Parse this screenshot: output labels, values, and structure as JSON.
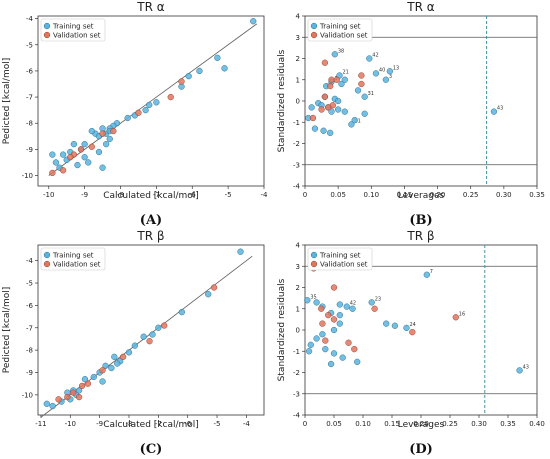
{
  "colors": {
    "training": "#5bb4de",
    "validation": "#e0765e",
    "training_edge": "#2a6f93",
    "validation_edge": "#9a3f2b",
    "line": "#666666",
    "leverage_line": "#2f8a94"
  },
  "chart_data": [
    {
      "id": "A",
      "type": "scatter",
      "panel_label": "(A)",
      "title": "TR α",
      "xlabel": "Calculated [kcal/mol]",
      "ylabel": "Pedicted [kcal/mol]",
      "xlim": [
        -10.3,
        -4.0
      ],
      "ylim": [
        -10.4,
        -3.9
      ],
      "xticks": [
        -10,
        -9,
        -8,
        -7,
        -6,
        -5,
        -4
      ],
      "yticks": [
        -10,
        -9,
        -8,
        -7,
        -6,
        -5,
        -4
      ],
      "grid": false,
      "legend": "top-left",
      "identity_line": [
        [
          -10,
          -10
        ],
        [
          -4.2,
          -4.2
        ]
      ],
      "series": [
        {
          "name": "Training set",
          "points": [
            [
              -4.3,
              -4.1
            ],
            [
              -5.3,
              -5.5
            ],
            [
              -5.1,
              -5.9
            ],
            [
              -5.8,
              -6.0
            ],
            [
              -6.1,
              -6.2
            ],
            [
              -6.3,
              -6.6
            ],
            [
              -7.0,
              -7.2
            ],
            [
              -7.2,
              -7.3
            ],
            [
              -7.3,
              -7.5
            ],
            [
              -7.6,
              -7.7
            ],
            [
              -7.8,
              -7.8
            ],
            [
              -8.1,
              -8.0
            ],
            [
              -8.2,
              -8.1
            ],
            [
              -8.3,
              -8.2
            ],
            [
              -8.4,
              -8.4
            ],
            [
              -8.5,
              -8.2
            ],
            [
              -8.7,
              -8.4
            ],
            [
              -8.8,
              -8.3
            ],
            [
              -9.0,
              -8.8
            ],
            [
              -9.1,
              -9.0
            ],
            [
              -9.3,
              -8.8
            ],
            [
              -9.4,
              -9.1
            ],
            [
              -9.6,
              -9.2
            ],
            [
              -9.8,
              -9.5
            ],
            [
              -9.9,
              -9.2
            ],
            [
              -9.7,
              -9.7
            ],
            [
              -9.5,
              -9.4
            ],
            [
              -9.0,
              -9.3
            ],
            [
              -8.9,
              -9.5
            ],
            [
              -8.6,
              -9.1
            ],
            [
              -8.4,
              -8.8
            ],
            [
              -8.3,
              -8.6
            ],
            [
              -8.6,
              -8.5
            ],
            [
              -8.5,
              -9.7
            ],
            [
              -9.2,
              -9.6
            ],
            [
              -8.3,
              -8.3
            ]
          ]
        },
        {
          "name": "Validation set",
          "points": [
            [
              -6.3,
              -6.4
            ],
            [
              -6.6,
              -7.0
            ],
            [
              -7.5,
              -7.6
            ],
            [
              -8.2,
              -8.3
            ],
            [
              -8.5,
              -8.4
            ],
            [
              -8.8,
              -8.9
            ],
            [
              -9.1,
              -9.0
            ],
            [
              -9.3,
              -9.2
            ],
            [
              -9.6,
              -9.8
            ],
            [
              -9.9,
              -9.9
            ],
            [
              -9.4,
              -9.3
            ]
          ]
        }
      ]
    },
    {
      "id": "B",
      "type": "scatter",
      "panel_label": "(B)",
      "title": "TR α",
      "xlabel": "Leverages",
      "ylabel": "Standardized residuals",
      "xlim": [
        0,
        0.35
      ],
      "ylim": [
        -4,
        4
      ],
      "xticks": [
        0.0,
        0.05,
        0.1,
        0.15,
        0.2,
        0.25,
        0.3,
        0.35
      ],
      "yticks": [
        -4,
        -3,
        -2,
        -1,
        0,
        1,
        2,
        3,
        4
      ],
      "grid": false,
      "legend": "top-left",
      "hlines": [
        3,
        -3
      ],
      "vline": 0.274,
      "series": [
        {
          "name": "Training set",
          "points": [
            [
              0.045,
              2.2
            ],
            [
              0.097,
              2.0
            ],
            [
              0.107,
              1.3
            ],
            [
              0.128,
              1.4
            ],
            [
              0.122,
              1.0
            ],
            [
              0.052,
              1.2
            ],
            [
              0.04,
              0.9
            ],
            [
              0.06,
              1.0
            ],
            [
              0.032,
              0.7
            ],
            [
              0.055,
              0.8
            ],
            [
              0.08,
              0.5
            ],
            [
              0.09,
              0.2
            ],
            [
              0.03,
              0.2
            ],
            [
              0.045,
              0.1
            ],
            [
              0.02,
              -0.1
            ],
            [
              0.025,
              -0.2
            ],
            [
              0.035,
              -0.3
            ],
            [
              0.01,
              -0.3
            ],
            [
              0.04,
              -0.5
            ],
            [
              0.05,
              -0.4
            ],
            [
              0.06,
              -0.5
            ],
            [
              0.005,
              -0.8
            ],
            [
              0.015,
              -1.3
            ],
            [
              0.028,
              -1.4
            ],
            [
              0.038,
              -1.5
            ],
            [
              0.07,
              -1.1
            ],
            [
              0.075,
              -0.9
            ],
            [
              0.09,
              -0.6
            ],
            [
              0.05,
              0.0
            ],
            [
              0.285,
              -0.5
            ]
          ],
          "labels": [
            "38",
            "42",
            "40",
            "13",
            "3",
            "21",
            "1",
            "",
            "",
            "",
            "",
            "31",
            "",
            "",
            "",
            "",
            "",
            "",
            "",
            "",
            "",
            "",
            "",
            "",
            "",
            "11",
            "",
            "",
            "",
            "43"
          ]
        },
        {
          "name": "Validation set",
          "points": [
            [
              0.03,
              1.8
            ],
            [
              0.085,
              1.2
            ],
            [
              0.04,
              1.0
            ],
            [
              0.048,
              1.0
            ],
            [
              0.038,
              0.7
            ],
            [
              0.03,
              0.2
            ],
            [
              0.042,
              -0.2
            ],
            [
              0.035,
              -0.3
            ],
            [
              0.012,
              -0.8
            ],
            [
              0.025,
              -0.4
            ],
            [
              0.085,
              0.8
            ]
          ]
        }
      ]
    },
    {
      "id": "C",
      "type": "scatter",
      "panel_label": "(C)",
      "title": "TR β",
      "xlabel": "Calculated [kcal/mol]",
      "ylabel": "Pedicted [kcal/mol]",
      "xlim": [
        -11.1,
        -3.4
      ],
      "ylim": [
        -10.9,
        -3.3
      ],
      "xticks": [
        -11,
        -10,
        -9,
        -8,
        -7,
        -6,
        -5,
        -4
      ],
      "yticks": [
        -10,
        -9,
        -8,
        -7,
        -6,
        -5,
        -4
      ],
      "grid": false,
      "legend": "top-left",
      "identity_line": [
        [
          -11,
          -11
        ],
        [
          -3.8,
          -3.8
        ]
      ],
      "series": [
        {
          "name": "Training set",
          "points": [
            [
              -4.2,
              -3.6
            ],
            [
              -5.3,
              -5.5
            ],
            [
              -6.2,
              -6.3
            ],
            [
              -7.0,
              -7.0
            ],
            [
              -7.5,
              -7.4
            ],
            [
              -7.8,
              -7.8
            ],
            [
              -8.0,
              -8.1
            ],
            [
              -8.3,
              -8.5
            ],
            [
              -8.5,
              -8.3
            ],
            [
              -8.6,
              -8.8
            ],
            [
              -8.8,
              -8.7
            ],
            [
              -9.0,
              -9.0
            ],
            [
              -9.2,
              -9.2
            ],
            [
              -9.5,
              -9.3
            ],
            [
              -9.7,
              -9.8
            ],
            [
              -9.8,
              -10.0
            ],
            [
              -9.9,
              -9.8
            ],
            [
              -10.0,
              -10.2
            ],
            [
              -10.1,
              -9.9
            ],
            [
              -10.3,
              -10.3
            ],
            [
              -10.6,
              -10.5
            ],
            [
              -10.8,
              -10.4
            ],
            [
              -8.4,
              -8.6
            ],
            [
              -8.9,
              -9.4
            ],
            [
              -7.2,
              -7.3
            ]
          ]
        },
        {
          "name": "Validation set",
          "points": [
            [
              -5.1,
              -5.2
            ],
            [
              -6.8,
              -6.9
            ],
            [
              -7.3,
              -7.6
            ],
            [
              -8.2,
              -8.3
            ],
            [
              -8.9,
              -8.9
            ],
            [
              -9.4,
              -9.5
            ],
            [
              -9.6,
              -9.6
            ],
            [
              -9.9,
              -9.9
            ],
            [
              -10.1,
              -10.1
            ],
            [
              -10.4,
              -10.2
            ],
            [
              -9.7,
              -10.1
            ]
          ]
        }
      ]
    },
    {
      "id": "D",
      "type": "scatter",
      "panel_label": "(D)",
      "title": "TR β",
      "xlabel": "Leverages",
      "ylabel": "Standardized residuals",
      "xlim": [
        0,
        0.4
      ],
      "ylim": [
        -4,
        4
      ],
      "xticks": [
        0.0,
        0.05,
        0.1,
        0.15,
        0.2,
        0.25,
        0.3,
        0.35,
        0.4
      ],
      "yticks": [
        -4,
        -3,
        -2,
        -1,
        0,
        1,
        2,
        3,
        4
      ],
      "grid": false,
      "legend": "top-left",
      "hlines": [
        3,
        -3
      ],
      "vline": 0.31,
      "series": [
        {
          "name": "Training set",
          "points": [
            [
              0.21,
              2.6
            ],
            [
              0.115,
              1.3
            ],
            [
              0.06,
              1.2
            ],
            [
              0.072,
              1.1
            ],
            [
              0.082,
              1.0
            ],
            [
              0.004,
              1.4
            ],
            [
              0.02,
              1.3
            ],
            [
              0.03,
              1.1
            ],
            [
              0.045,
              0.8
            ],
            [
              0.06,
              0.7
            ],
            [
              0.14,
              0.3
            ],
            [
              0.175,
              0.1
            ],
            [
              0.06,
              0.3
            ],
            [
              0.05,
              0.0
            ],
            [
              0.03,
              -0.2
            ],
            [
              0.02,
              -0.4
            ],
            [
              0.01,
              -0.7
            ],
            [
              0.035,
              -0.9
            ],
            [
              0.05,
              -1.1
            ],
            [
              0.065,
              -1.3
            ],
            [
              0.09,
              -1.5
            ],
            [
              0.045,
              -1.6
            ],
            [
              0.007,
              -1.0
            ],
            [
              0.155,
              0.2
            ],
            [
              0.37,
              -1.9
            ]
          ],
          "labels": [
            "7",
            "23",
            "",
            "42",
            "",
            "35",
            "",
            "",
            "",
            "",
            "",
            "24",
            "",
            "",
            "",
            "",
            "",
            "",
            "",
            "",
            "",
            "",
            "",
            "",
            "43"
          ]
        },
        {
          "name": "Validation set",
          "points": [
            [
              0.015,
              2.9
            ],
            [
              0.05,
              2.0
            ],
            [
              0.028,
              1.0
            ],
            [
              0.04,
              0.7
            ],
            [
              0.12,
              1.0
            ],
            [
              0.03,
              0.3
            ],
            [
              0.05,
              0.5
            ],
            [
              0.26,
              0.6
            ],
            [
              0.185,
              -0.1
            ],
            [
              0.075,
              -0.6
            ],
            [
              0.085,
              -0.9
            ],
            [
              0.035,
              -0.5
            ]
          ],
          "labels": [
            "",
            "",
            "",
            "",
            "",
            "",
            "",
            "16",
            "",
            "",
            "",
            ""
          ]
        }
      ]
    }
  ]
}
